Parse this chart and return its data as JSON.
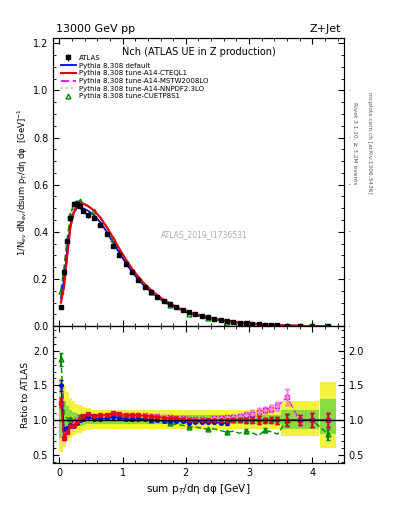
{
  "title_top": "13000 GeV pp",
  "title_right": "Z+Jet",
  "plot_title": "Nch (ATLAS UE in Z production)",
  "watermark": "ATLAS_2019_I1736531",
  "ylabel_main": "1/N$_{ev}$ dN$_{ev}$/dsum p$_T$/dη dφ  [GeV]$^{-1}$",
  "ylabel_ratio": "Ratio to ATLAS",
  "xlabel": "sum p$_T$/dη dφ [GeV]",
  "right_label1": "Rivet 3.1.10, ≥ 3.2M events",
  "right_label2": "mcplots.cern.ch [arXiv:1306.3436]",
  "xlim": [
    -0.1,
    4.5
  ],
  "ylim_main": [
    0.0,
    1.22
  ],
  "ylim_ratio": [
    0.38,
    2.35
  ],
  "ratio_yticks": [
    0.5,
    1.0,
    1.5,
    2.0
  ],
  "main_yticks": [
    0.0,
    0.2,
    0.4,
    0.6,
    0.8,
    1.0,
    1.2
  ],
  "atlas_x": [
    0.025,
    0.075,
    0.125,
    0.175,
    0.225,
    0.275,
    0.325,
    0.375,
    0.45,
    0.55,
    0.65,
    0.75,
    0.85,
    0.95,
    1.05,
    1.15,
    1.25,
    1.35,
    1.45,
    1.55,
    1.65,
    1.75,
    1.85,
    1.95,
    2.05,
    2.15,
    2.25,
    2.35,
    2.45,
    2.55,
    2.65,
    2.75,
    2.85,
    2.95,
    3.05,
    3.15,
    3.25,
    3.35,
    3.45,
    3.6,
    3.8,
    4.0,
    4.25
  ],
  "atlas_y": [
    0.08,
    0.23,
    0.36,
    0.46,
    0.52,
    0.52,
    0.51,
    0.49,
    0.47,
    0.46,
    0.43,
    0.39,
    0.34,
    0.3,
    0.265,
    0.228,
    0.195,
    0.168,
    0.145,
    0.125,
    0.108,
    0.093,
    0.08,
    0.069,
    0.06,
    0.051,
    0.044,
    0.038,
    0.032,
    0.027,
    0.023,
    0.019,
    0.016,
    0.013,
    0.011,
    0.009,
    0.007,
    0.006,
    0.005,
    0.003,
    0.002,
    0.001,
    0.0005
  ],
  "atlas_yerr": [
    0.008,
    0.012,
    0.012,
    0.012,
    0.012,
    0.012,
    0.012,
    0.012,
    0.01,
    0.01,
    0.008,
    0.008,
    0.007,
    0.006,
    0.005,
    0.005,
    0.004,
    0.004,
    0.003,
    0.003,
    0.003,
    0.002,
    0.002,
    0.002,
    0.002,
    0.001,
    0.001,
    0.001,
    0.001,
    0.001,
    0.001,
    0.001,
    0.001,
    0.001,
    0.001,
    0.001,
    0.0005,
    0.0005,
    0.0005,
    0.0005,
    0.0003,
    0.0002,
    0.0001
  ],
  "mc_x": [
    0.025,
    0.075,
    0.125,
    0.175,
    0.225,
    0.275,
    0.325,
    0.375,
    0.45,
    0.55,
    0.65,
    0.75,
    0.85,
    0.95,
    1.05,
    1.15,
    1.25,
    1.35,
    1.45,
    1.55,
    1.65,
    1.75,
    1.85,
    1.95,
    2.05,
    2.15,
    2.25,
    2.35,
    2.45,
    2.55,
    2.65,
    2.75,
    2.85,
    2.95,
    3.05,
    3.15,
    3.25,
    3.35,
    3.45,
    3.6,
    3.8,
    4.0,
    4.25
  ],
  "default_y": [
    0.12,
    0.2,
    0.32,
    0.43,
    0.48,
    0.5,
    0.51,
    0.5,
    0.49,
    0.47,
    0.44,
    0.4,
    0.355,
    0.31,
    0.268,
    0.231,
    0.198,
    0.17,
    0.146,
    0.125,
    0.107,
    0.092,
    0.079,
    0.068,
    0.058,
    0.05,
    0.043,
    0.037,
    0.031,
    0.026,
    0.022,
    0.019,
    0.016,
    0.013,
    0.011,
    0.009,
    0.007,
    0.006,
    0.005,
    0.003,
    0.002,
    0.001,
    0.0005
  ],
  "cteql1_y": [
    0.1,
    0.17,
    0.3,
    0.42,
    0.48,
    0.51,
    0.52,
    0.52,
    0.51,
    0.49,
    0.46,
    0.42,
    0.375,
    0.328,
    0.284,
    0.244,
    0.209,
    0.179,
    0.153,
    0.131,
    0.112,
    0.096,
    0.082,
    0.07,
    0.06,
    0.051,
    0.044,
    0.038,
    0.032,
    0.027,
    0.023,
    0.019,
    0.016,
    0.013,
    0.011,
    0.009,
    0.007,
    0.006,
    0.005,
    0.003,
    0.002,
    0.001,
    0.0005
  ],
  "mstw_y": [
    0.1,
    0.17,
    0.3,
    0.42,
    0.49,
    0.52,
    0.53,
    0.52,
    0.51,
    0.49,
    0.46,
    0.42,
    0.375,
    0.327,
    0.283,
    0.244,
    0.21,
    0.18,
    0.154,
    0.132,
    0.113,
    0.097,
    0.083,
    0.071,
    0.061,
    0.052,
    0.045,
    0.038,
    0.033,
    0.028,
    0.024,
    0.02,
    0.017,
    0.014,
    0.012,
    0.01,
    0.008,
    0.007,
    0.006,
    0.004,
    0.002,
    0.001,
    0.0005
  ],
  "nnpdf_y": [
    0.1,
    0.17,
    0.3,
    0.42,
    0.49,
    0.52,
    0.53,
    0.52,
    0.51,
    0.49,
    0.46,
    0.42,
    0.375,
    0.328,
    0.284,
    0.245,
    0.21,
    0.181,
    0.155,
    0.133,
    0.114,
    0.097,
    0.083,
    0.071,
    0.061,
    0.052,
    0.045,
    0.038,
    0.033,
    0.028,
    0.024,
    0.02,
    0.017,
    0.014,
    0.012,
    0.01,
    0.008,
    0.007,
    0.006,
    0.004,
    0.002,
    0.001,
    0.0005
  ],
  "cuetp_y": [
    0.15,
    0.25,
    0.37,
    0.47,
    0.52,
    0.53,
    0.53,
    0.52,
    0.51,
    0.49,
    0.46,
    0.42,
    0.37,
    0.319,
    0.274,
    0.234,
    0.2,
    0.17,
    0.145,
    0.123,
    0.104,
    0.089,
    0.075,
    0.064,
    0.054,
    0.046,
    0.039,
    0.033,
    0.028,
    0.023,
    0.019,
    0.016,
    0.013,
    0.011,
    0.009,
    0.007,
    0.006,
    0.005,
    0.004,
    0.003,
    0.002,
    0.001,
    0.0004
  ],
  "color_default": "#0000ee",
  "color_cteql1": "#ee0000",
  "color_mstw": "#dd00dd",
  "color_nnpdf": "#ff88cc",
  "color_cuetp": "#008800",
  "color_atlas": "#000000",
  "band_green": "#44cc44",
  "band_yellow": "#eeee00"
}
